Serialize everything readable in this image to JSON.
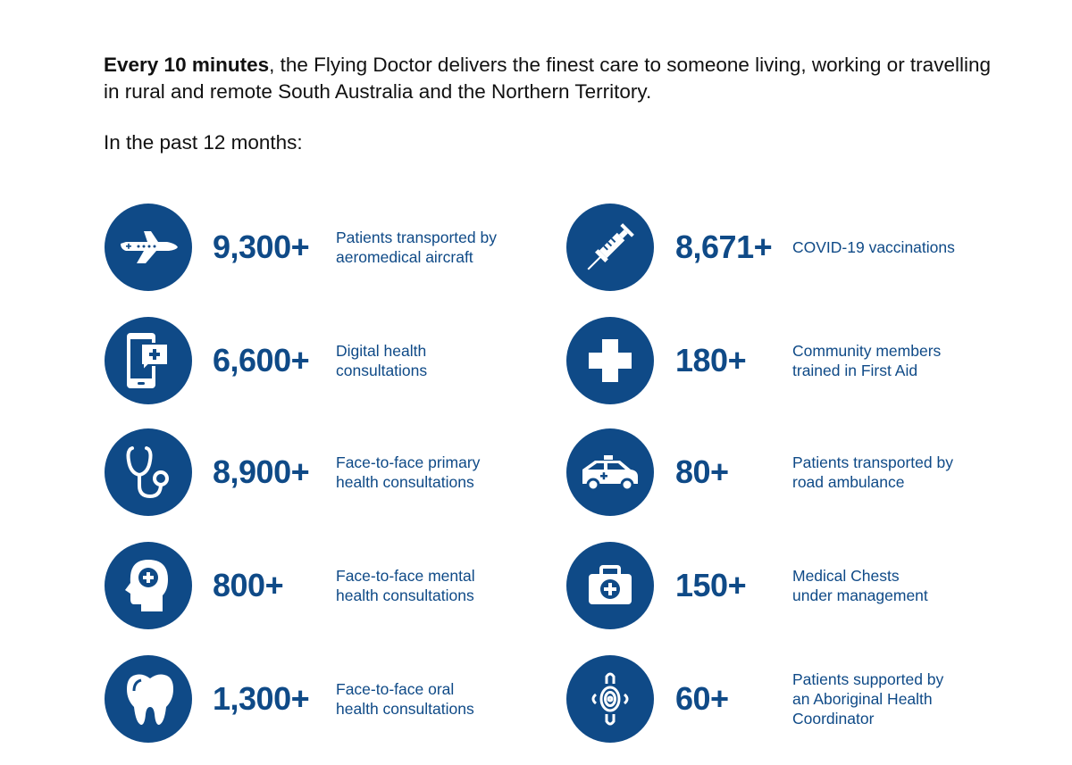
{
  "intro": {
    "bold": "Every 10 minutes",
    "rest": ", the Flying Doctor delivers the finest care to someone living, working or travelling in rural and remote South Australia and the Northern Territory."
  },
  "subheading": "In the past 12 months:",
  "accent_color": "#0f4a87",
  "left": [
    {
      "icon": "airplane-icon",
      "value": "9,300+",
      "lines": [
        "Patients transported by",
        "aeromedical aircraft"
      ]
    },
    {
      "icon": "phone-chat-icon",
      "value": "6,600+",
      "lines": [
        "Digital health",
        "consultations"
      ]
    },
    {
      "icon": "stethoscope-icon",
      "value": "8,900+",
      "lines": [
        "Face-to-face primary",
        "health consultations"
      ]
    },
    {
      "icon": "head-cross-icon",
      "value": "800+",
      "lines": [
        "Face-to-face mental",
        "health consultations"
      ]
    },
    {
      "icon": "tooth-icon",
      "value": "1,300+",
      "lines": [
        "Face-to-face oral",
        "health consultations"
      ]
    }
  ],
  "right": [
    {
      "icon": "syringe-icon",
      "value": "8,671+",
      "lines": [
        "COVID-19 vaccinations"
      ]
    },
    {
      "icon": "cross-icon",
      "value": "180+",
      "lines": [
        "Community members",
        "trained in First Aid"
      ]
    },
    {
      "icon": "ambulance-icon",
      "value": "80+",
      "lines": [
        "Patients transported by",
        "road ambulance"
      ]
    },
    {
      "icon": "medical-chest-icon",
      "value": "150+",
      "lines": [
        "Medical Chests",
        "under management"
      ]
    },
    {
      "icon": "aboriginal-symbol-icon",
      "value": "60+",
      "lines": [
        "Patients supported by",
        "an Aboriginal Health",
        "Coordinator"
      ]
    }
  ]
}
